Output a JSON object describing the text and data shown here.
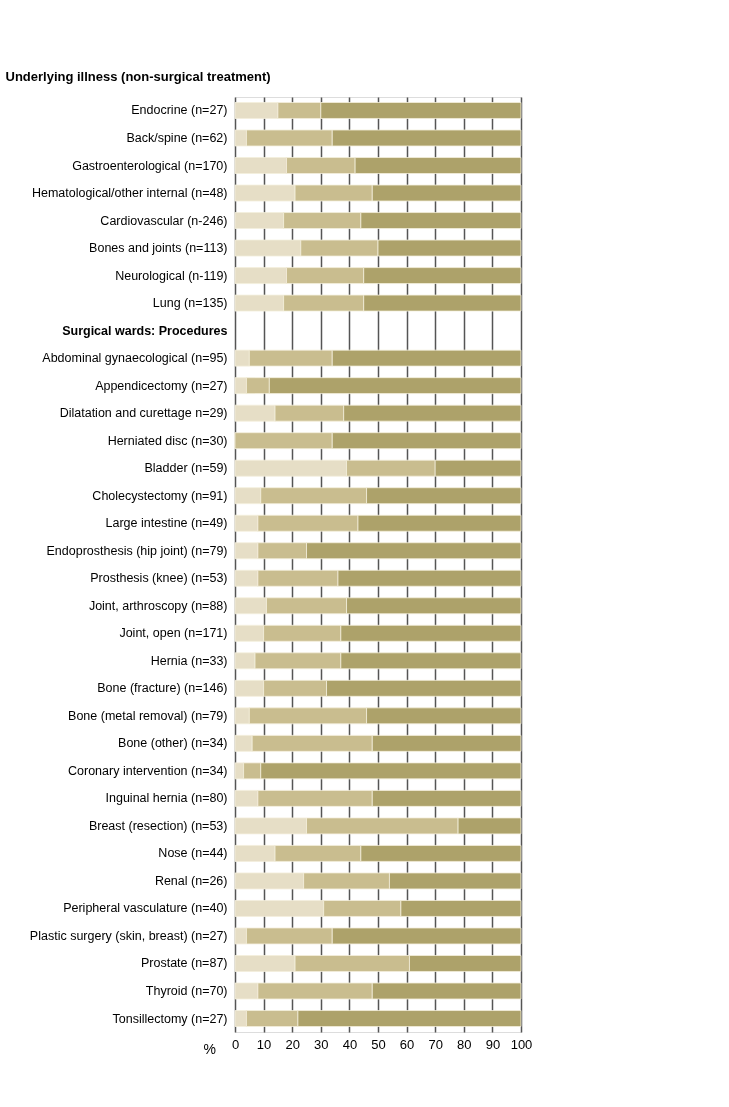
{
  "chart_data": {
    "type": "bar",
    "orientation": "horizontal",
    "stacked": true,
    "ylabel": "Underlying illness (non-surgical treatment)",
    "xlabel": "%",
    "categories": [
      "Endocrine (n=27)",
      "Back/spine (n=62)",
      "Gastroenterological (n=170)",
      "Hematological/other internal (n=48)",
      "Cardiovascular (n-246)",
      "Bones and joints (n=113)",
      "Neurological (n-119)",
      "Lung (n=135)",
      "Surgical wards: Procedures",
      "Abdominal gynaecological (n=95)",
      "Appendicectomy (n=27)",
      "Dilatation and curettage n=29)",
      "Herniated disc (n=30)",
      "Bladder (n=59)",
      "Cholecystectomy (n=91)",
      "Large intestine (n=49)",
      "Endoprosthesis (hip joint) (n=79)",
      "Prosthesis (knee) (n=53)",
      "Joint, arthroscopy (n=88)",
      "Joint, open (n=171)",
      "Hernia (n=33)",
      "Bone (fracture) (n=146)",
      "Bone (metal removal) (n=79)",
      "Bone (other) (n=34)",
      "Coronary intervention (n=34)",
      "Inguinal hernia (n=80)",
      "Breast (resection) (n=53)",
      "Nose (n=44)",
      "Renal (n=26)",
      "Peripheral vasculature (n=40)",
      "Plastic surgery (skin, breast) (n=27)",
      "Prostate (n=87)",
      "Thyroid (n=70)",
      "Tonsillectomy (n=27)"
    ],
    "series": [
      {
        "color": "#e6dec6",
        "values": [
          15,
          4,
          18,
          21,
          17,
          23,
          18,
          17,
          null,
          5,
          4,
          14,
          0,
          39,
          9,
          8,
          8,
          8,
          11,
          10,
          7,
          10,
          5,
          6,
          3,
          8,
          25,
          14,
          24,
          31,
          4,
          21,
          8,
          4
        ]
      },
      {
        "color": "#c9bd8f",
        "values": [
          15,
          30,
          24,
          27,
          27,
          27,
          27,
          28,
          null,
          29,
          8,
          24,
          34,
          31,
          37,
          35,
          17,
          28,
          28,
          27,
          30,
          22,
          41,
          42,
          6,
          40,
          53,
          30,
          30,
          27,
          30,
          40,
          40,
          18
        ]
      },
      {
        "color": "#ada26a",
        "values": [
          70,
          66,
          58,
          52,
          56,
          50,
          55,
          55,
          null,
          66,
          88,
          62,
          66,
          30,
          54,
          57,
          75,
          64,
          61,
          63,
          63,
          68,
          54,
          52,
          91,
          52,
          22,
          56,
          46,
          42,
          66,
          39,
          52,
          78
        ]
      }
    ],
    "xlim": [
      0,
      100
    ],
    "xticks": [
      0,
      10,
      20,
      30,
      40,
      50,
      60,
      70,
      80,
      90,
      100
    ],
    "grid": "x",
    "legend": false
  }
}
